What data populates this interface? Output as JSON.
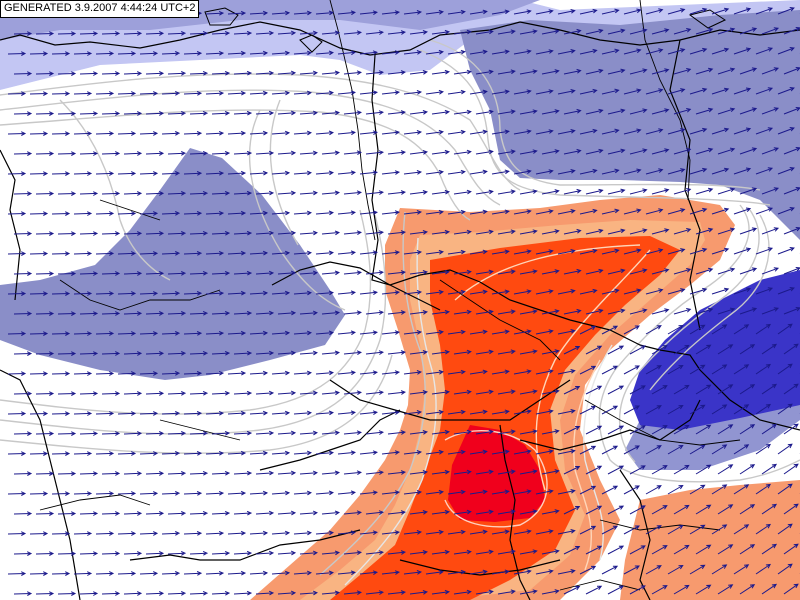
{
  "header": {
    "generated_label": "GENERATED 3.9.2007 4:44:24 UTC+2"
  },
  "colors": {
    "background": "#ffffff",
    "light_blue": "#c3c6f3",
    "mid_blue": "#8a8ec8",
    "dark_blue": "#3a34c8",
    "salmon": "#f79a6e",
    "red_orange": "#ff4a10",
    "red": "#f0001c",
    "contour": "#c8c8c8",
    "border": "#000000",
    "arrow": "#1c1a8c"
  },
  "wind_field": {
    "direction": "east-northeast",
    "arrow_spacing": "dense grid"
  }
}
